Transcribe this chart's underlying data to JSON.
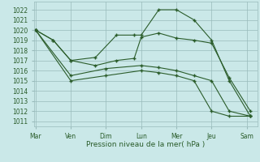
{
  "background_color": "#cae8e8",
  "grid_color": "#99bbbb",
  "line_color": "#2a5c2a",
  "marker_color": "#2a5c2a",
  "xlabel": "Pression niveau de la mer( hPa )",
  "ylim": [
    1010.5,
    1022.8
  ],
  "yticks": [
    1011,
    1012,
    1013,
    1014,
    1015,
    1016,
    1017,
    1018,
    1019,
    1020,
    1021,
    1022
  ],
  "xtick_labels": [
    "Mar",
    "Ven",
    "Dim",
    "Lun",
    "Mer",
    "Jeu",
    "Sam"
  ],
  "xtick_positions": [
    0,
    1,
    2,
    3,
    4,
    5,
    6
  ],
  "xlim": [
    -0.05,
    6.3
  ],
  "series": [
    {
      "x": [
        0,
        0.5,
        1,
        1.7,
        2.3,
        2.8,
        3.0,
        3.5,
        4.0,
        4.5,
        5.0,
        5.5,
        6.1
      ],
      "y": [
        1020,
        1019,
        1017,
        1017.3,
        1019.5,
        1019.5,
        1019.5,
        1022.0,
        1022.0,
        1021.0,
        1019.0,
        1015.0,
        1011.5
      ]
    },
    {
      "x": [
        0,
        0.5,
        1,
        1.7,
        2.3,
        2.8,
        3.0,
        3.5,
        4.0,
        4.5,
        5.0,
        5.5,
        6.1
      ],
      "y": [
        1020,
        1019,
        1017,
        1016.5,
        1017.0,
        1017.2,
        1019.3,
        1019.7,
        1019.2,
        1019.0,
        1018.7,
        1015.3,
        1012.0
      ]
    },
    {
      "x": [
        0,
        1,
        2,
        3,
        3.5,
        4.0,
        4.5,
        5.0,
        5.5,
        6.1
      ],
      "y": [
        1020,
        1015.5,
        1016.2,
        1016.5,
        1016.3,
        1016.0,
        1015.5,
        1015.0,
        1012.0,
        1011.5
      ]
    },
    {
      "x": [
        0,
        1,
        2,
        3,
        3.5,
        4.0,
        4.5,
        5.0,
        5.5,
        6.1
      ],
      "y": [
        1020,
        1015.0,
        1015.5,
        1016.0,
        1015.8,
        1015.5,
        1015.0,
        1012.0,
        1011.5,
        1011.5
      ]
    }
  ]
}
